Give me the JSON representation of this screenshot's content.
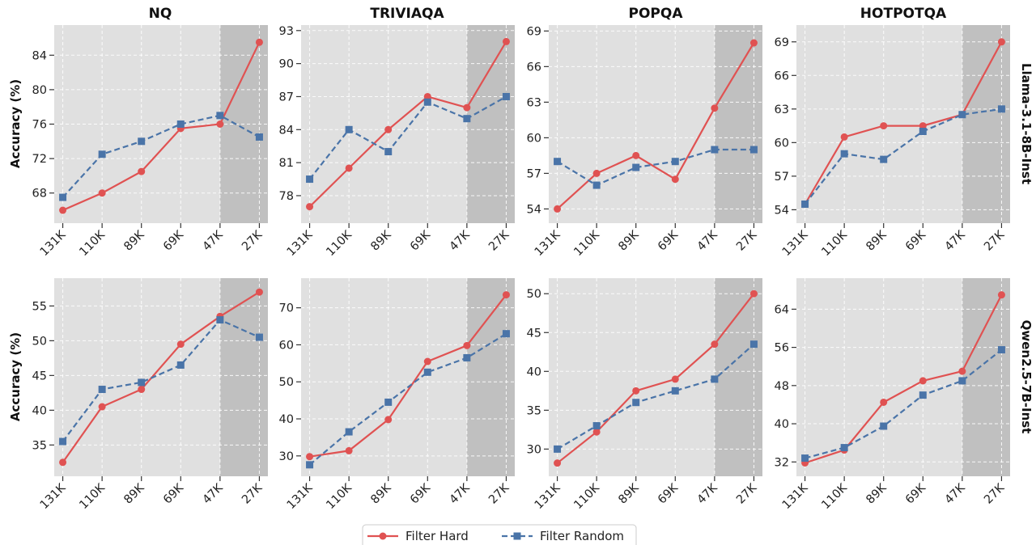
{
  "chart_data": {
    "type": "line",
    "column_titles": [
      "NQ",
      "TRIVIAQA",
      "POPQA",
      "HOTPOTQA"
    ],
    "row_labels": [
      "Llama-3.1-8B-Inst",
      "Qwen2.5-7B-Inst"
    ],
    "ylabel": "Accuracy (%)",
    "categories": [
      "131K",
      "110K",
      "89K",
      "69K",
      "47K",
      "27K"
    ],
    "highlight_region": {
      "from": "47K",
      "to": "27K",
      "color": "#c0c0c0"
    },
    "legend": {
      "placement": "bottom-center",
      "entries": [
        "Filter Hard",
        "Filter Random"
      ]
    },
    "colors": {
      "Filter Hard": "#e05252",
      "Filter Random": "#4a74a8",
      "panel_bg": "#e0e0e0",
      "grid": "#ffffff"
    },
    "panels": [
      {
        "row": 0,
        "col": 0,
        "ylim": [
          64.5,
          87.5
        ],
        "yticks": [
          68,
          72,
          76,
          80,
          84
        ],
        "series": [
          {
            "name": "Filter Hard",
            "values": [
              66.0,
              68.0,
              70.5,
              75.5,
              76.0,
              85.5
            ]
          },
          {
            "name": "Filter Random",
            "values": [
              67.5,
              72.5,
              74.0,
              76.0,
              77.0,
              74.5
            ]
          }
        ]
      },
      {
        "row": 0,
        "col": 1,
        "ylim": [
          75.5,
          93.5
        ],
        "yticks": [
          78,
          81,
          84,
          87,
          90,
          93
        ],
        "series": [
          {
            "name": "Filter Hard",
            "values": [
              77.0,
              80.5,
              84.0,
              87.0,
              86.0,
              92.0
            ]
          },
          {
            "name": "Filter Random",
            "values": [
              79.5,
              84.0,
              82.0,
              86.5,
              85.0,
              87.0
            ]
          }
        ]
      },
      {
        "row": 0,
        "col": 2,
        "ylim": [
          52.8,
          69.5
        ],
        "yticks": [
          54,
          57,
          60,
          63,
          66,
          69
        ],
        "series": [
          {
            "name": "Filter Hard",
            "values": [
              54.0,
              57.0,
              58.5,
              56.5,
              62.5,
              68.0
            ]
          },
          {
            "name": "Filter Random",
            "values": [
              58.0,
              56.0,
              57.5,
              58.0,
              59.0,
              59.0
            ]
          }
        ]
      },
      {
        "row": 0,
        "col": 3,
        "ylim": [
          52.8,
          70.5
        ],
        "yticks": [
          54,
          57,
          60,
          63,
          66,
          69
        ],
        "series": [
          {
            "name": "Filter Hard",
            "values": [
              54.5,
              60.5,
              61.5,
              61.5,
              62.5,
              69.0
            ]
          },
          {
            "name": "Filter Random",
            "values": [
              54.5,
              59.0,
              58.5,
              61.0,
              62.5,
              63.0
            ]
          }
        ]
      },
      {
        "row": 1,
        "col": 0,
        "ylim": [
          30.5,
          59.0
        ],
        "yticks": [
          35,
          40,
          45,
          50,
          55
        ],
        "series": [
          {
            "name": "Filter Hard",
            "values": [
              32.5,
              40.5,
              43.0,
              49.5,
              53.5,
              57.0
            ]
          },
          {
            "name": "Filter Random",
            "values": [
              35.5,
              43.0,
              44.0,
              46.5,
              53.0,
              50.5
            ]
          }
        ]
      },
      {
        "row": 1,
        "col": 1,
        "ylim": [
          24.5,
          78.0
        ],
        "yticks": [
          30,
          40,
          50,
          60,
          70
        ],
        "series": [
          {
            "name": "Filter Hard",
            "values": [
              29.8,
              31.4,
              39.8,
              55.5,
              59.8,
              73.5
            ]
          },
          {
            "name": "Filter Random",
            "values": [
              27.6,
              36.5,
              44.5,
              52.6,
              56.5,
              63.0
            ]
          }
        ]
      },
      {
        "row": 1,
        "col": 2,
        "ylim": [
          26.5,
          52.0
        ],
        "yticks": [
          30,
          35,
          40,
          45,
          50
        ],
        "series": [
          {
            "name": "Filter Hard",
            "values": [
              28.2,
              32.2,
              37.5,
              39.0,
              43.5,
              50.0
            ]
          },
          {
            "name": "Filter Random",
            "values": [
              30.0,
              33.0,
              36.0,
              37.5,
              39.0,
              43.5
            ]
          }
        ]
      },
      {
        "row": 1,
        "col": 3,
        "ylim": [
          29.0,
          70.5
        ],
        "yticks": [
          32,
          40,
          48,
          56,
          64
        ],
        "series": [
          {
            "name": "Filter Hard",
            "values": [
              31.8,
              34.5,
              44.5,
              49.0,
              51.0,
              67.0
            ]
          },
          {
            "name": "Filter Random",
            "values": [
              32.8,
              35.0,
              39.5,
              46.0,
              49.0,
              55.5
            ]
          }
        ]
      }
    ]
  }
}
